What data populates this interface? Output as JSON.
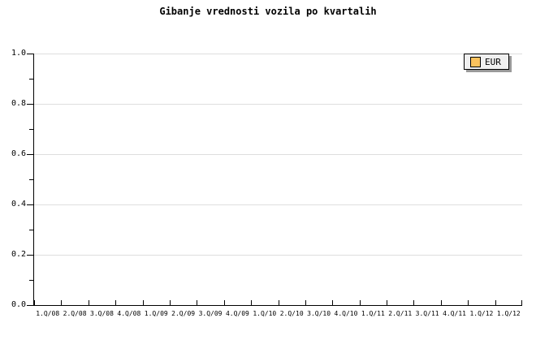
{
  "chart_data": {
    "type": "line",
    "title": "Gibanje vrednosti vozila po kvartalih",
    "categories": [
      "1.Q/08",
      "2.Q/08",
      "3.Q/08",
      "4.Q/08",
      "1.Q/09",
      "2.Q/09",
      "3.Q/09",
      "4.Q/09",
      "1.Q/10",
      "2.Q/10",
      "3.Q/10",
      "4.Q/10",
      "1.Q/11",
      "2.Q/11",
      "3.Q/11",
      "4.Q/11",
      "1.Q/12",
      "1.Q/12"
    ],
    "series": [
      {
        "name": "EUR",
        "color": "#fbc25d",
        "values": []
      }
    ],
    "xlabel": "",
    "ylabel": "",
    "ylim": [
      0.0,
      1.0
    ],
    "y_tick_labels": [
      "1.0",
      "0.8",
      "0.6",
      "0.4",
      "0.2",
      "0.0"
    ],
    "y_major_step": 0.2,
    "y_minor_step": 0.1,
    "grid": true,
    "gridline_color": "#dedede",
    "axis_color": "#000000",
    "legend_position": "top-right"
  },
  "legend": {
    "label": "EUR",
    "swatch_color": "#fbc25d",
    "background_color": "#f0f0f0",
    "border_color": "#000000",
    "shadow_color": "#999999"
  }
}
